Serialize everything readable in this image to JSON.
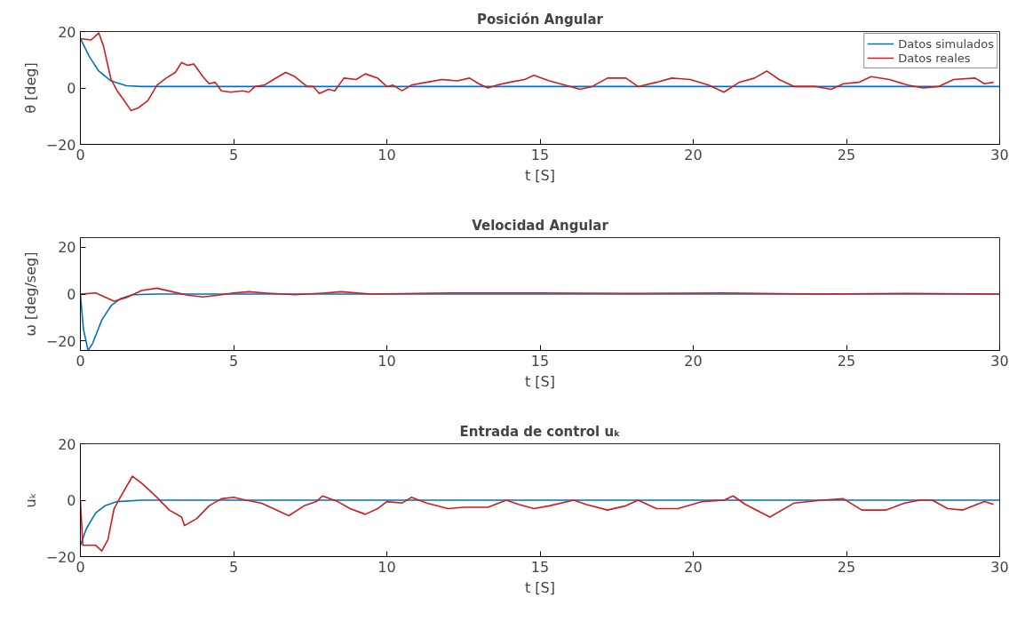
{
  "chart_data": [
    {
      "type": "line",
      "title": "Posición Angular",
      "xlabel": "t [S]",
      "ylabel": "θ [deg]",
      "xlim": [
        0,
        30
      ],
      "xticks": [
        0,
        5,
        10,
        15,
        20,
        25,
        30
      ],
      "ylim": [
        -20,
        20
      ],
      "yticks": [
        -20,
        0,
        20
      ],
      "grid": false,
      "legend": "top right",
      "line_style": "solid",
      "series": [
        {
          "name": "Datos simulados",
          "color": "#0072bd",
          "x": [
            0,
            0.3,
            0.6,
            1.0,
            1.5,
            2,
            5,
            30
          ],
          "values": [
            17.5,
            11,
            6,
            2.5,
            0.8,
            0.5,
            0.5,
            0.5
          ]
        },
        {
          "name": "Datos reales",
          "color": "#d01c1c",
          "x": [
            0,
            0.35,
            0.6,
            0.75,
            1.0,
            1.2,
            1.4,
            1.65,
            1.9,
            2.2,
            2.5,
            2.8,
            3.1,
            3.3,
            3.5,
            3.7,
            4.0,
            4.2,
            4.4,
            4.6,
            4.9,
            5.3,
            5.5,
            5.7,
            6.0,
            6.3,
            6.7,
            7.0,
            7.4,
            7.6,
            7.8,
            8.1,
            8.3,
            8.6,
            9.0,
            9.3,
            9.7,
            10.0,
            10.2,
            10.5,
            10.8,
            11.3,
            11.8,
            12.3,
            12.7,
            13.0,
            13.3,
            13.6,
            14,
            14.5,
            14.8,
            15.3,
            16.0,
            16.3,
            16.7,
            17.2,
            17.8,
            18.2,
            18.8,
            19.3,
            19.9,
            20.5,
            21.0,
            21.5,
            22.0,
            22.4,
            22.8,
            23.3,
            24.0,
            24.5,
            24.9,
            25.4,
            25.8,
            26.4,
            27.0,
            27.5,
            28.0,
            28.5,
            29.2,
            29.5,
            29.8
          ],
          "values": [
            17.5,
            17,
            19.5,
            15,
            3,
            -1,
            -4,
            -8,
            -7,
            -4.5,
            1,
            3.5,
            5.5,
            9,
            8,
            8.5,
            4,
            1.5,
            2,
            -1,
            -1.5,
            -1,
            -1.5,
            0.5,
            1,
            3,
            5.5,
            4,
            0.5,
            0.5,
            -2,
            -0.5,
            -1,
            3.5,
            3,
            5,
            3.5,
            0.5,
            1,
            -1,
            1,
            2,
            3,
            2.5,
            3.5,
            1.5,
            0,
            1,
            2,
            3,
            4.5,
            2.5,
            0.5,
            -0.5,
            0.5,
            3.5,
            3.5,
            0.5,
            2,
            3.5,
            3,
            1,
            -1.5,
            2,
            3.5,
            6,
            3,
            0.5,
            0.5,
            -0.5,
            1.5,
            2,
            4,
            3,
            1,
            0,
            0.5,
            3,
            3.5,
            1.5,
            2
          ]
        }
      ]
    },
    {
      "type": "line",
      "title": "Velocidad Angular",
      "xlabel": "t [S]",
      "ylabel": "ω [deg/seg]",
      "xlim": [
        0,
        30
      ],
      "xticks": [
        0,
        5,
        10,
        15,
        20,
        25,
        30
      ],
      "ylim": [
        -24,
        24
      ],
      "yticks": [
        -20,
        0,
        20
      ],
      "grid": false,
      "line_style": "solid",
      "series": [
        {
          "color": "#0072bd",
          "x": [
            0,
            0.1,
            0.25,
            0.4,
            0.7,
            1.0,
            1.3,
            1.7,
            2.5,
            30
          ],
          "values": [
            0,
            -15,
            -24,
            -21,
            -11,
            -5,
            -2,
            -0.3,
            0,
            0
          ]
        },
        {
          "color": "#d01c1c",
          "x": [
            0,
            0.5,
            1.1,
            1.5,
            2.0,
            2.5,
            3.0,
            3.5,
            4.0,
            4.5,
            5,
            5.5,
            6,
            7,
            8,
            8.5,
            9.5,
            12,
            15,
            18,
            21,
            24,
            27,
            30
          ],
          "values": [
            0,
            0.5,
            -3,
            -1.5,
            1.5,
            2.5,
            1,
            -0.5,
            -1.2,
            -0.5,
            0.5,
            1,
            0.5,
            -0.3,
            0.5,
            1,
            0,
            0.5,
            0.5,
            0.3,
            0.5,
            0,
            0.3,
            0
          ]
        }
      ]
    },
    {
      "type": "line",
      "title": "Entrada de control uₖ",
      "xlabel": "t [S]",
      "ylabel": "uₖ",
      "xlim": [
        0,
        30
      ],
      "xticks": [
        0,
        5,
        10,
        15,
        20,
        25,
        30
      ],
      "ylim": [
        -20,
        20
      ],
      "yticks": [
        -20,
        0,
        20
      ],
      "grid": false,
      "line_style": "solid",
      "series": [
        {
          "color": "#0072bd",
          "x": [
            0,
            0.2,
            0.5,
            0.8,
            1.2,
            2,
            30
          ],
          "values": [
            -16,
            -10,
            -4.5,
            -2,
            -0.5,
            0,
            0
          ]
        },
        {
          "color": "#d01c1c",
          "x": [
            0,
            0.08,
            0.5,
            0.7,
            0.9,
            1.1,
            1.3,
            1.7,
            2.0,
            2.5,
            2.9,
            3.3,
            3.4,
            3.8,
            4.2,
            4.6,
            5.0,
            5.4,
            5.9,
            6.3,
            6.8,
            7.3,
            7.7,
            7.9,
            8.4,
            8.8,
            9.3,
            9.7,
            10.0,
            10.5,
            10.8,
            11.3,
            12.0,
            12.5,
            13.3,
            13.9,
            14.3,
            14.8,
            15.3,
            16.1,
            16.5,
            17.2,
            17.8,
            18.2,
            18.8,
            19.5,
            20.3,
            21.0,
            21.3,
            21.7,
            22.5,
            23.3,
            24.2,
            24.9,
            25.5,
            26.3,
            26.9,
            27.4,
            27.8,
            28.3,
            28.8,
            29.5,
            29.8
          ],
          "values": [
            0,
            -16,
            -16,
            -18,
            -14,
            -3,
            1,
            8.5,
            6,
            1,
            -3.5,
            -6,
            -9,
            -6.5,
            -2,
            0.5,
            1,
            0,
            -1,
            -3,
            -5.5,
            -2,
            -0.5,
            1.5,
            -0.5,
            -3,
            -5,
            -3,
            -0.5,
            -1,
            1,
            -1,
            -3,
            -2.5,
            -2.5,
            0,
            -1.5,
            -3,
            -2,
            0,
            -1.5,
            -3.5,
            -2,
            0,
            -3,
            -3,
            -0.5,
            0,
            1.5,
            -1.5,
            -6,
            -1,
            0,
            0.5,
            -3.5,
            -3.5,
            -1,
            0,
            0,
            -3,
            -3.5,
            -0.5,
            -1.5
          ]
        }
      ]
    }
  ]
}
